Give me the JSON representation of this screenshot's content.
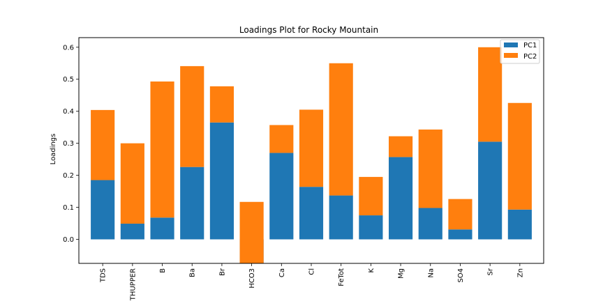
{
  "chart_data": {
    "type": "bar",
    "stacked": true,
    "title": "Loadings Plot for Rocky Mountain",
    "xlabel": "",
    "ylabel": "Loadings",
    "ylim": [
      -0.075,
      0.63
    ],
    "yticks": [
      "0.0",
      "0.1",
      "0.2",
      "0.3",
      "0.4",
      "0.5",
      "0.6"
    ],
    "categories": [
      "TDS",
      "THUPPER",
      "B",
      "Ba",
      "Br",
      "HCO3",
      "Ca",
      "Cl",
      "FeTot",
      "K",
      "Mg",
      "Na",
      "SO4",
      "Sr",
      "Zn"
    ],
    "series": [
      {
        "name": "PC1",
        "color": "#1f77b4",
        "values": [
          0.185,
          0.049,
          0.068,
          0.226,
          0.365,
          -0.085,
          0.27,
          0.164,
          0.137,
          0.075,
          0.257,
          0.098,
          0.031,
          0.305,
          0.093
        ]
      },
      {
        "name": "PC2",
        "color": "#ff7f0e",
        "values": [
          0.219,
          0.251,
          0.425,
          0.315,
          0.113,
          0.202,
          0.087,
          0.241,
          0.413,
          0.12,
          0.065,
          0.245,
          0.095,
          0.295,
          0.333
        ]
      }
    ],
    "legend_position": "top-right",
    "grid": false
  }
}
